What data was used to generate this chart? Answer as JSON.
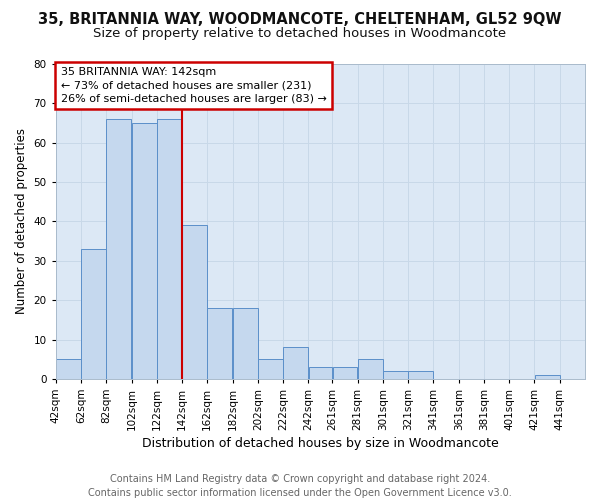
{
  "title1": "35, BRITANNIA WAY, WOODMANCOTE, CHELTENHAM, GL52 9QW",
  "title2": "Size of property relative to detached houses in Woodmancote",
  "xlabel": "Distribution of detached houses by size in Woodmancote",
  "ylabel": "Number of detached properties",
  "bar_left_edges": [
    42,
    62,
    82,
    102,
    122,
    142,
    162,
    182,
    202,
    222,
    242,
    261,
    281,
    301,
    321,
    341,
    361,
    381,
    401,
    421
  ],
  "bar_widths": [
    20,
    20,
    20,
    20,
    20,
    20,
    20,
    20,
    20,
    20,
    19,
    20,
    20,
    20,
    20,
    20,
    20,
    20,
    20,
    20
  ],
  "bar_heights": [
    5,
    33,
    66,
    65,
    66,
    39,
    18,
    18,
    5,
    8,
    3,
    3,
    5,
    2,
    2,
    0,
    0,
    0,
    0,
    1
  ],
  "xtick_labels": [
    "42sqm",
    "62sqm",
    "82sqm",
    "102sqm",
    "122sqm",
    "142sqm",
    "162sqm",
    "182sqm",
    "202sqm",
    "222sqm",
    "242sqm",
    "261sqm",
    "281sqm",
    "301sqm",
    "321sqm",
    "341sqm",
    "361sqm",
    "381sqm",
    "401sqm",
    "421sqm",
    "441sqm"
  ],
  "xtick_positions": [
    42,
    62,
    82,
    102,
    122,
    142,
    162,
    182,
    202,
    222,
    242,
    261,
    281,
    301,
    321,
    341,
    361,
    381,
    401,
    421,
    441
  ],
  "ylim": [
    0,
    80
  ],
  "yticks": [
    0,
    10,
    20,
    30,
    40,
    50,
    60,
    70,
    80
  ],
  "bar_color": "#c5d8ee",
  "bar_edge_color": "#5b8fc9",
  "red_line_x": 142,
  "annotation_title": "35 BRITANNIA WAY: 142sqm",
  "annotation_line1": "← 73% of detached houses are smaller (231)",
  "annotation_line2": "26% of semi-detached houses are larger (83) →",
  "annotation_box_facecolor": "#ffffff",
  "annotation_box_edgecolor": "#cc0000",
  "grid_color": "#c8d8e8",
  "plot_bg_color": "#dce8f5",
  "fig_bg_color": "#ffffff",
  "footer1": "Contains HM Land Registry data © Crown copyright and database right 2024.",
  "footer2": "Contains public sector information licensed under the Open Government Licence v3.0.",
  "title1_fontsize": 10.5,
  "title2_fontsize": 9.5,
  "xlabel_fontsize": 9,
  "ylabel_fontsize": 8.5,
  "tick_fontsize": 7.5,
  "annotation_fontsize": 8,
  "footer_fontsize": 7
}
